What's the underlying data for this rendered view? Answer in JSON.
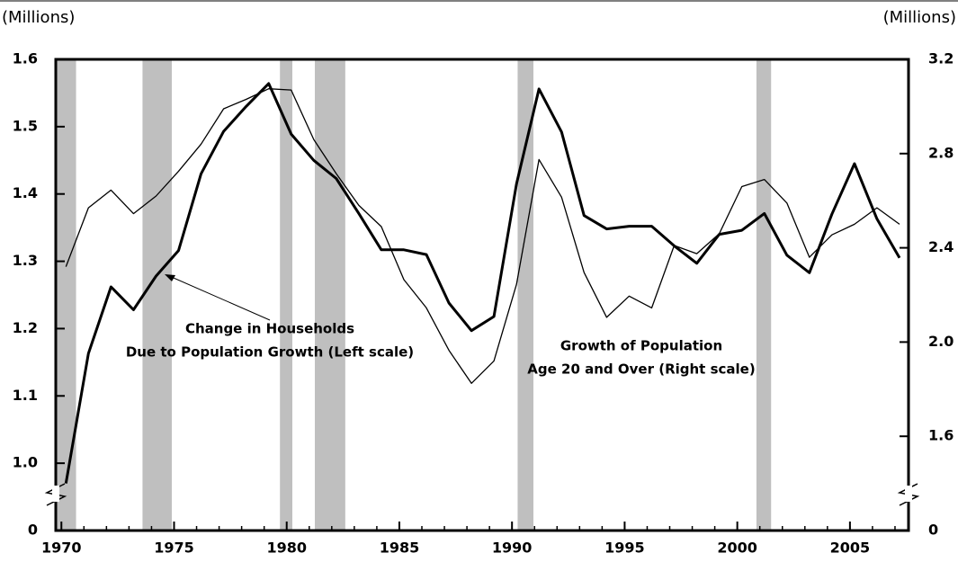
{
  "chart_data": {
    "type": "line",
    "y_unit_label": "(Millions)",
    "y2_unit_label": "(Millions)",
    "x": [
      1970.2,
      1971.2,
      1972.2,
      1973.2,
      1974.2,
      1975.2,
      1976.2,
      1977.2,
      1978.2,
      1979.2,
      1980.2,
      1981.2,
      1982.2,
      1983.2,
      1984.2,
      1985.2,
      1986.2,
      1987.2,
      1988.2,
      1989.2,
      1990.2,
      1991.2,
      1992.2,
      1993.2,
      1994.2,
      1995.2,
      1996.2,
      1997.2,
      1998.2,
      1999.2,
      2000.2,
      2001.2,
      2002.2,
      2003.2,
      2004.2,
      2005.2,
      2006.2,
      2007.2
    ],
    "series": [
      {
        "name": "Change in Households Due to Population Growth (Left scale)",
        "color": "#000000",
        "width": 3,
        "axis": "y",
        "values": [
          0.97,
          1.163,
          1.262,
          1.228,
          1.278,
          1.316,
          1.43,
          1.493,
          1.53,
          1.564,
          1.489,
          1.45,
          1.423,
          1.371,
          1.317,
          1.317,
          1.31,
          1.238,
          1.197,
          1.218,
          1.415,
          1.556,
          1.492,
          1.368,
          1.348,
          1.352,
          1.352,
          1.323,
          1.297,
          1.34,
          1.346,
          1.371,
          1.309,
          1.283,
          1.37,
          1.445,
          1.363,
          1.305
        ]
      },
      {
        "name": "Growth of Population Age 20 and Over (Right scale)",
        "color": "#000000",
        "width": 1.3,
        "axis": "y2",
        "values": [
          2.32,
          2.57,
          2.645,
          2.545,
          2.62,
          2.725,
          2.84,
          2.99,
          3.03,
          3.075,
          3.07,
          2.86,
          2.715,
          2.58,
          2.49,
          2.265,
          2.145,
          1.965,
          1.825,
          1.92,
          2.245,
          2.775,
          2.615,
          2.295,
          2.105,
          2.195,
          2.145,
          2.41,
          2.375,
          2.46,
          2.66,
          2.69,
          2.59,
          2.36,
          2.455,
          2.5,
          2.57,
          2.5
        ]
      }
    ],
    "annotations": [
      {
        "lines": [
          "Change in Households",
          "Due to Population Growth (Left scale)"
        ]
      },
      {
        "lines": [
          "Growth of Population",
          "Age 20 and Over (Right scale)"
        ]
      }
    ],
    "recessions": [
      [
        1969.8,
        1970.65
      ],
      [
        1973.6,
        1974.9
      ],
      [
        1979.7,
        1980.25
      ],
      [
        1981.25,
        1982.6
      ],
      [
        1990.25,
        1990.95
      ],
      [
        2000.85,
        2001.5
      ]
    ],
    "recession_color": "#bfbfbf",
    "xlim": [
      1969.75,
      2007.6
    ],
    "xticks": [
      1970,
      1975,
      1980,
      1985,
      1990,
      1995,
      2000,
      2005
    ],
    "ylim": [
      0,
      1.6
    ],
    "ybreak": [
      0,
      0.9
    ],
    "yticks": [
      0,
      {
        "value": 1.0,
        "label": "1.0"
      },
      1.1,
      1.2,
      1.3,
      1.4,
      1.5,
      1.6
    ],
    "y2lim": [
      0,
      3.2
    ],
    "y2break": [
      0,
      1.2
    ],
    "y2ticks": [
      0,
      1.6,
      {
        "value": 2.0,
        "label": "2.0"
      },
      2.4,
      2.8,
      3.2
    ]
  }
}
